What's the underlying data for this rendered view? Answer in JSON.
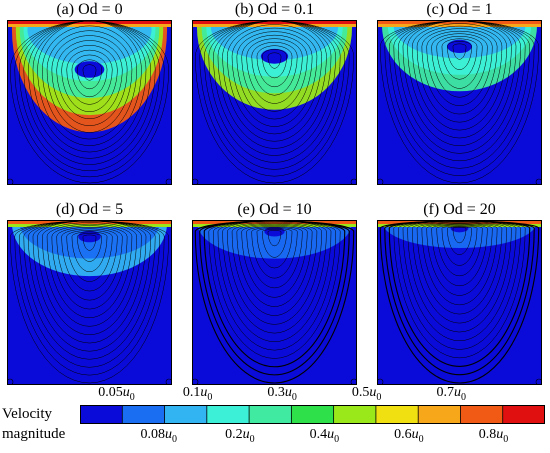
{
  "panels": [
    {
      "label": "(a) Od = 0",
      "od": 0
    },
    {
      "label": "(b) Od = 0.1",
      "od": 0.1
    },
    {
      "label": "(c) Od = 1",
      "od": 1
    },
    {
      "label": "(d) Od = 5",
      "od": 5
    },
    {
      "label": "(e) Od = 10",
      "od": 10
    },
    {
      "label": "(f) Od = 20",
      "od": 20
    }
  ],
  "legend": {
    "title_line1": "Velocity",
    "title_line2": "magnitude",
    "levels": [
      {
        "coef": "0.05",
        "color": "#0b0bd9"
      },
      {
        "coef": "0.08",
        "color": "#1a6ef2"
      },
      {
        "coef": "0.1",
        "color": "#33b4f2"
      },
      {
        "coef": "0.2",
        "color": "#3cf0d8"
      },
      {
        "coef": "0.3",
        "color": "#40eaa0"
      },
      {
        "coef": "0.4",
        "color": "#2ee04a"
      },
      {
        "coef": "0.5",
        "color": "#9be81a"
      },
      {
        "coef": "0.6",
        "color": "#f0e012"
      },
      {
        "coef": "0.7",
        "color": "#f7a81a"
      },
      {
        "coef": "0.8",
        "color": "#f05a14"
      }
    ],
    "top_color": "#e01010",
    "unit": "u",
    "unit_sub": "0"
  },
  "colors": {
    "background_flow": "#0b0bd9",
    "streamline": "#000000"
  }
}
